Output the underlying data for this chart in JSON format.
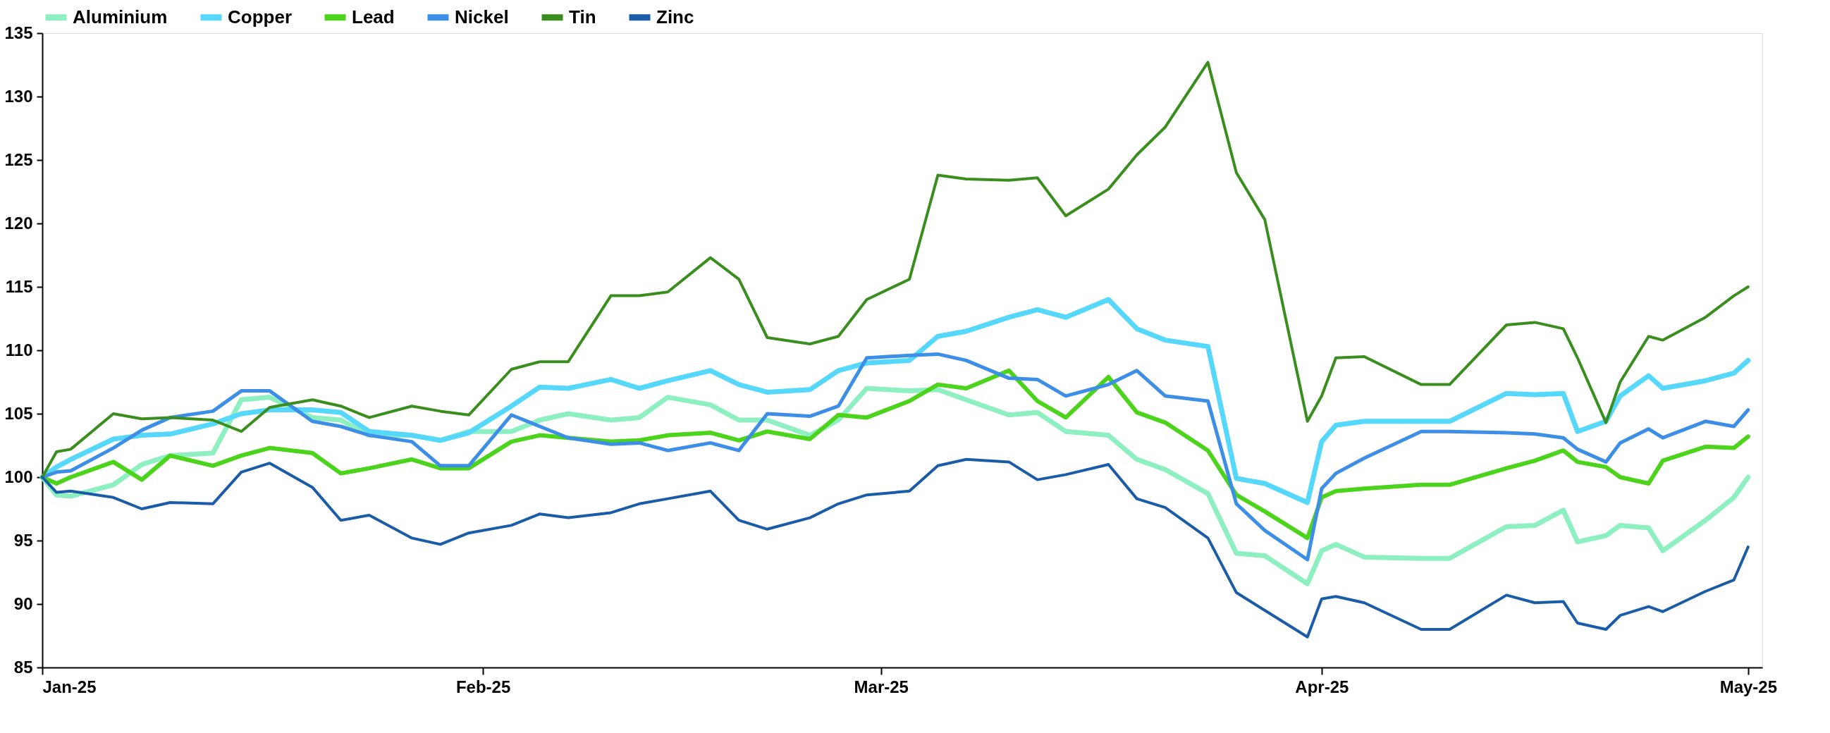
{
  "chart_data": {
    "type": "line",
    "x": [
      "2025-01-01",
      "2025-01-02",
      "2025-01-03",
      "2025-01-06",
      "2025-01-08",
      "2025-01-10",
      "2025-01-13",
      "2025-01-15",
      "2025-01-17",
      "2025-01-20",
      "2025-01-22",
      "2025-01-24",
      "2025-01-27",
      "2025-01-29",
      "2025-01-31",
      "2025-02-03",
      "2025-02-05",
      "2025-02-07",
      "2025-02-10",
      "2025-02-12",
      "2025-02-14",
      "2025-02-17",
      "2025-02-19",
      "2025-02-21",
      "2025-02-24",
      "2025-02-26",
      "2025-02-28",
      "2025-03-03",
      "2025-03-05",
      "2025-03-07",
      "2025-03-10",
      "2025-03-12",
      "2025-03-14",
      "2025-03-17",
      "2025-03-19",
      "2025-03-21",
      "2025-03-24",
      "2025-03-26",
      "2025-03-28",
      "2025-03-31",
      "2025-04-01",
      "2025-04-02",
      "2025-04-04",
      "2025-04-08",
      "2025-04-10",
      "2025-04-14",
      "2025-04-16",
      "2025-04-18",
      "2025-04-19",
      "2025-04-21",
      "2025-04-22",
      "2025-04-24",
      "2025-04-25",
      "2025-04-28",
      "2025-04-30",
      "2025-05-01"
    ],
    "series": [
      {
        "name": "Aluminium",
        "color": "#8ef0c0",
        "values": [
          100,
          98.6,
          98.5,
          99.4,
          101.0,
          101.7,
          101.9,
          106.1,
          106.3,
          104.7,
          104.5,
          103.3,
          103.3,
          102.9,
          103.6,
          103.6,
          104.5,
          105.0,
          104.5,
          104.7,
          106.3,
          105.7,
          104.5,
          104.5,
          103.3,
          104.5,
          107.0,
          106.8,
          106.9,
          106.1,
          104.9,
          105.1,
          103.6,
          103.3,
          101.4,
          100.6,
          98.7,
          94.0,
          93.8,
          91.6,
          94.2,
          94.7,
          93.7,
          93.6,
          93.6,
          96.1,
          96.2,
          97.4,
          94.9,
          95.4,
          96.2,
          96.0,
          94.2,
          96.6,
          98.4,
          100.0
        ]
      },
      {
        "name": "Copper",
        "color": "#55d8fb",
        "values": [
          100,
          100.8,
          101.4,
          103.0,
          103.3,
          103.4,
          104.2,
          105.0,
          105.3,
          105.3,
          105.1,
          103.6,
          103.3,
          102.9,
          103.5,
          105.6,
          107.1,
          107.0,
          107.7,
          107.0,
          107.6,
          108.4,
          107.3,
          106.7,
          106.9,
          108.4,
          109.0,
          109.2,
          111.1,
          111.5,
          112.6,
          113.2,
          112.6,
          114.0,
          111.7,
          110.8,
          110.3,
          99.9,
          99.5,
          98.0,
          102.8,
          104.1,
          104.4,
          104.4,
          104.4,
          106.6,
          106.5,
          106.6,
          103.6,
          104.4,
          106.4,
          108.0,
          107.0,
          107.6,
          108.2,
          109.2
        ]
      },
      {
        "name": "Lead",
        "color": "#4cd41c",
        "values": [
          100,
          99.5,
          100,
          101.2,
          99.8,
          101.7,
          100.9,
          101.7,
          102.3,
          101.9,
          100.3,
          100.7,
          101.4,
          100.7,
          100.7,
          102.8,
          103.3,
          103.1,
          102.8,
          102.9,
          103.3,
          103.5,
          102.9,
          103.6,
          103.0,
          104.9,
          104.7,
          106.0,
          107.3,
          107.0,
          108.4,
          106.0,
          104.7,
          107.9,
          105.1,
          104.3,
          102.1,
          98.6,
          97.3,
          95.2,
          98.4,
          98.9,
          99.1,
          99.4,
          99.4,
          100.7,
          101.3,
          102.1,
          101.2,
          100.8,
          100.0,
          99.5,
          101.3,
          102.4,
          102.3,
          103.2
        ]
      },
      {
        "name": "Nickel",
        "color": "#3c8ee6",
        "values": [
          100,
          100.4,
          100.5,
          102.3,
          103.7,
          104.7,
          105.2,
          106.8,
          106.8,
          104.4,
          104.0,
          103.3,
          102.8,
          100.9,
          100.9,
          104.9,
          104.0,
          103.1,
          102.6,
          102.7,
          102.1,
          102.7,
          102.1,
          105.0,
          104.8,
          105.6,
          109.4,
          109.6,
          109.7,
          109.2,
          107.8,
          107.7,
          106.4,
          107.3,
          108.4,
          106.4,
          106.0,
          97.9,
          95.8,
          93.5,
          99.1,
          100.3,
          101.5,
          103.6,
          103.6,
          103.5,
          103.4,
          103.1,
          102.2,
          101.2,
          102.7,
          103.8,
          103.1,
          104.4,
          104.0,
          105.3
        ]
      },
      {
        "name": "Tin",
        "color": "#3a8e1e",
        "values": [
          100,
          102.0,
          102.2,
          105.0,
          104.6,
          104.7,
          104.5,
          103.6,
          105.5,
          106.1,
          105.6,
          104.7,
          105.6,
          105.2,
          104.9,
          108.5,
          109.1,
          109.1,
          114.3,
          114.3,
          114.6,
          117.3,
          115.6,
          111.0,
          110.5,
          111.1,
          114.0,
          115.6,
          123.8,
          123.5,
          123.4,
          123.6,
          120.6,
          122.7,
          125.4,
          127.6,
          132.7,
          124.0,
          120.3,
          104.4,
          106.4,
          109.4,
          109.5,
          107.3,
          107.3,
          112.0,
          112.2,
          111.7,
          109.4,
          104.3,
          107.5,
          111.1,
          110.8,
          112.6,
          114.3,
          115.0
        ]
      },
      {
        "name": "Zinc",
        "color": "#1a5ca8",
        "values": [
          100,
          98.8,
          98.9,
          98.4,
          97.5,
          98.0,
          97.9,
          100.4,
          101.1,
          99.2,
          96.6,
          97.0,
          95.2,
          94.7,
          95.6,
          96.2,
          97.1,
          96.8,
          97.2,
          97.9,
          98.3,
          98.9,
          96.6,
          95.9,
          96.8,
          97.9,
          98.6,
          98.9,
          100.9,
          101.4,
          101.2,
          99.8,
          100.2,
          101.0,
          98.3,
          97.6,
          95.2,
          90.9,
          89.5,
          87.4,
          90.4,
          90.6,
          90.1,
          88.0,
          88.0,
          90.7,
          90.1,
          90.2,
          88.5,
          88.0,
          89.1,
          89.8,
          89.4,
          91.0,
          91.9,
          94.5
        ]
      }
    ],
    "xlim": [
      "2025-01-01",
      "2025-05-02"
    ],
    "xticks": [
      {
        "value": "2025-01-01",
        "label": "Jan-25"
      },
      {
        "value": "2025-02-01",
        "label": "Feb-25"
      },
      {
        "value": "2025-03-01",
        "label": "Mar-25"
      },
      {
        "value": "2025-04-01",
        "label": "Apr-25"
      },
      {
        "value": "2025-05-01",
        "label": "May-25"
      }
    ],
    "ylim": [
      85,
      135
    ],
    "yticks": [
      85,
      90,
      95,
      100,
      105,
      110,
      115,
      120,
      125,
      130,
      135
    ],
    "grid": false,
    "legend": "top",
    "line_style": "solid"
  }
}
